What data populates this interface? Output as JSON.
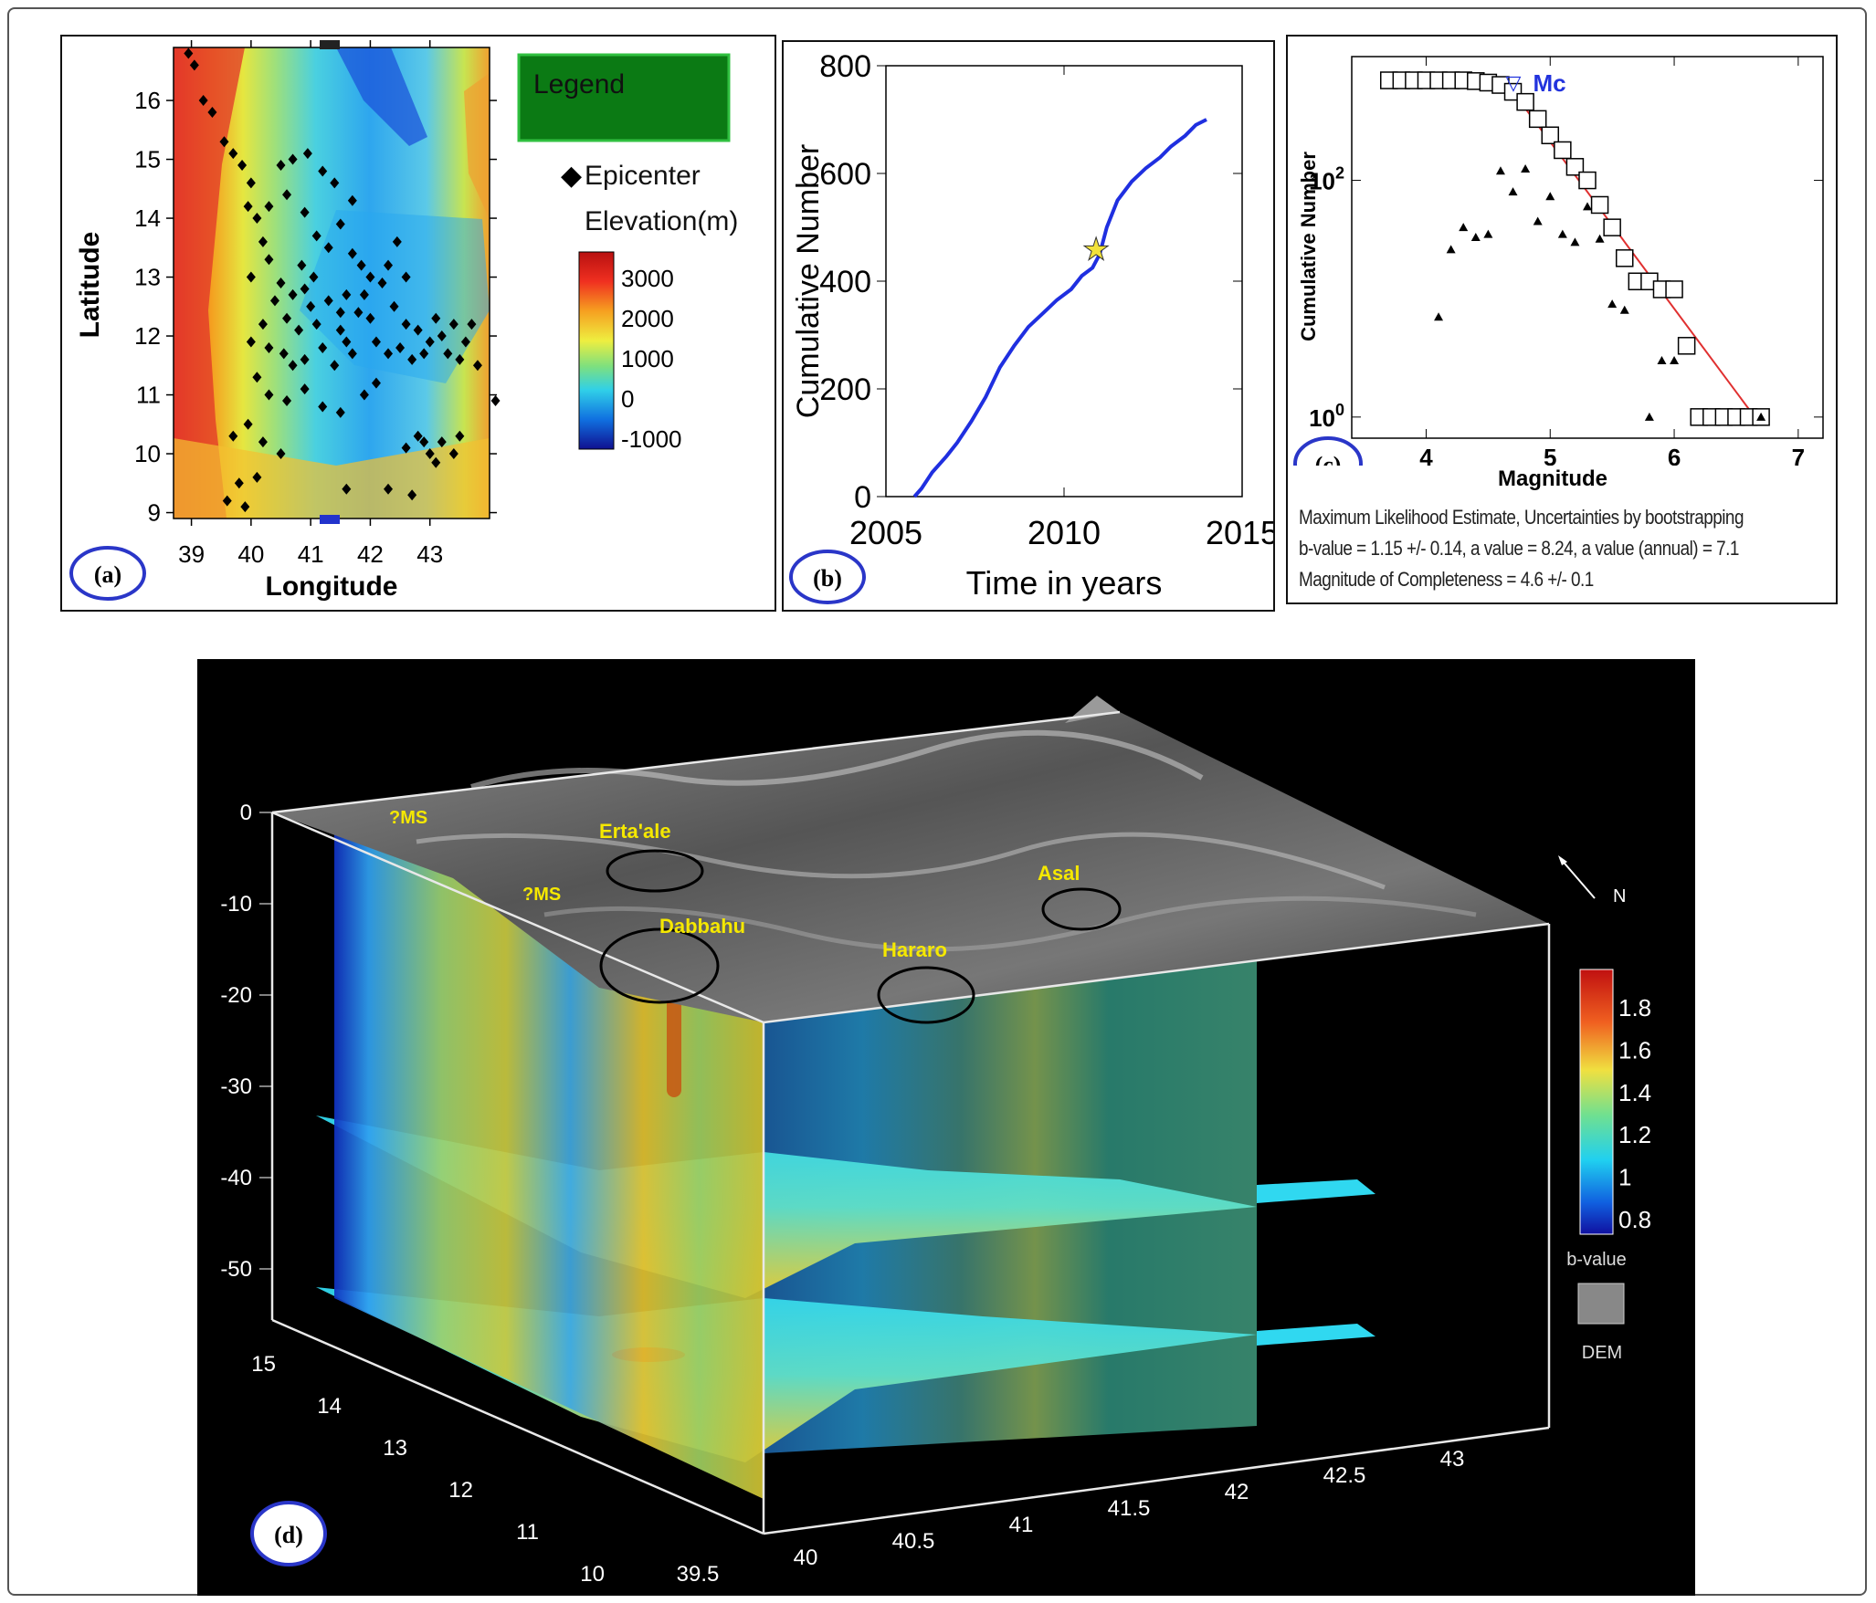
{
  "colors": {
    "epicenter": "#000000",
    "cumulative_curve": "#1f2fe0",
    "marker_star": "#f2e23a",
    "fit_line": "#e03030",
    "mc_label": "#2233dd",
    "legend_box": "#0b7a14",
    "panel_label_circle": "#2a36c8",
    "annotation_text": "#f5e800",
    "panel_d_bg": "#000000"
  },
  "chart_data": [
    {
      "id": "a",
      "type": "scatter",
      "panel_label": "(a)",
      "xlabel": "Longitude",
      "ylabel": "Latitude",
      "xlim": [
        38.7,
        44.0
      ],
      "ylim": [
        8.9,
        16.9
      ],
      "x_ticks": [
        "39",
        "40",
        "41",
        "42",
        "43"
      ],
      "y_ticks": [
        "9",
        "10",
        "11",
        "12",
        "13",
        "14",
        "15",
        "16"
      ],
      "legend": {
        "title": "Legend",
        "series_label": "Epicenter",
        "colorbar_title": "Elevation(m)",
        "colorbar_ticks": [
          "3000",
          "2000",
          "1000",
          "0",
          "-1000"
        ]
      },
      "series": [
        {
          "name": "Epicenter",
          "points": [
            [
              38.95,
              16.8
            ],
            [
              39.05,
              16.6
            ],
            [
              39.2,
              16.0
            ],
            [
              39.35,
              15.8
            ],
            [
              39.55,
              15.3
            ],
            [
              39.7,
              15.1
            ],
            [
              39.85,
              14.9
            ],
            [
              40.0,
              14.6
            ],
            [
              39.95,
              14.2
            ],
            [
              40.1,
              14.0
            ],
            [
              40.2,
              13.6
            ],
            [
              40.3,
              13.3
            ],
            [
              40.5,
              14.9
            ],
            [
              40.7,
              15.0
            ],
            [
              40.95,
              15.1
            ],
            [
              41.2,
              14.8
            ],
            [
              41.4,
              14.6
            ],
            [
              41.7,
              14.3
            ],
            [
              40.6,
              14.4
            ],
            [
              40.9,
              14.1
            ],
            [
              41.1,
              13.7
            ],
            [
              41.3,
              13.5
            ],
            [
              41.5,
              13.9
            ],
            [
              41.7,
              13.4
            ],
            [
              41.85,
              13.2
            ],
            [
              42.0,
              13.0
            ],
            [
              41.9,
              12.7
            ],
            [
              42.2,
              12.9
            ],
            [
              42.3,
              13.2
            ],
            [
              42.45,
              13.6
            ],
            [
              42.6,
              13.0
            ],
            [
              40.5,
              12.9
            ],
            [
              40.7,
              12.7
            ],
            [
              40.9,
              12.8
            ],
            [
              41.0,
              12.5
            ],
            [
              40.6,
              12.3
            ],
            [
              40.8,
              12.1
            ],
            [
              41.1,
              12.2
            ],
            [
              41.3,
              12.6
            ],
            [
              41.5,
              12.4
            ],
            [
              41.6,
              12.7
            ],
            [
              41.8,
              12.4
            ],
            [
              40.4,
              12.6
            ],
            [
              40.2,
              12.2
            ],
            [
              40.0,
              11.9
            ],
            [
              40.3,
              11.8
            ],
            [
              40.55,
              11.7
            ],
            [
              40.7,
              11.5
            ],
            [
              40.9,
              11.6
            ],
            [
              41.2,
              11.8
            ],
            [
              41.4,
              11.5
            ],
            [
              41.6,
              11.9
            ],
            [
              42.1,
              11.9
            ],
            [
              42.3,
              11.7
            ],
            [
              42.5,
              11.8
            ],
            [
              42.7,
              11.6
            ],
            [
              42.9,
              11.7
            ],
            [
              43.0,
              11.9
            ],
            [
              43.2,
              12.0
            ],
            [
              43.4,
              12.2
            ],
            [
              43.6,
              11.9
            ],
            [
              43.7,
              12.2
            ],
            [
              43.5,
              11.6
            ],
            [
              43.3,
              11.7
            ],
            [
              43.8,
              11.5
            ],
            [
              43.1,
              12.3
            ],
            [
              42.8,
              12.1
            ],
            [
              42.6,
              12.2
            ],
            [
              40.1,
              11.3
            ],
            [
              40.3,
              11.0
            ],
            [
              40.6,
              10.9
            ],
            [
              40.9,
              11.1
            ],
            [
              41.2,
              10.8
            ],
            [
              41.5,
              10.7
            ],
            [
              39.95,
              10.5
            ],
            [
              39.7,
              10.3
            ],
            [
              40.2,
              10.2
            ],
            [
              40.5,
              10.0
            ],
            [
              39.8,
              9.5
            ],
            [
              39.6,
              9.2
            ],
            [
              39.9,
              9.1
            ],
            [
              40.1,
              9.6
            ],
            [
              41.6,
              9.4
            ],
            [
              42.3,
              9.4
            ],
            [
              42.7,
              9.3
            ],
            [
              42.6,
              10.1
            ],
            [
              42.8,
              10.3
            ],
            [
              43.0,
              10.0
            ],
            [
              43.2,
              10.2
            ],
            [
              43.4,
              10.0
            ],
            [
              43.1,
              9.85
            ],
            [
              42.9,
              10.2
            ],
            [
              43.5,
              10.3
            ],
            [
              44.1,
              10.9
            ],
            [
              42.1,
              11.2
            ],
            [
              41.9,
              11.0
            ],
            [
              42.4,
              12.5
            ],
            [
              42.0,
              12.3
            ],
            [
              41.7,
              11.7
            ],
            [
              41.5,
              12.1
            ],
            [
              40.85,
              13.2
            ],
            [
              41.05,
              13.0
            ],
            [
              40.3,
              14.2
            ],
            [
              40.0,
              13.0
            ]
          ]
        }
      ]
    },
    {
      "id": "b",
      "type": "line",
      "panel_label": "(b)",
      "xlabel": "Time in years",
      "ylabel": "Cumulative Number",
      "xlim": [
        2005,
        2015
      ],
      "ylim": [
        0,
        800
      ],
      "x_ticks": [
        "2005",
        "2010",
        "2015"
      ],
      "y_ticks": [
        "0",
        "200",
        "400",
        "600",
        "800"
      ],
      "series": [
        {
          "name": "",
          "x": [
            2005.8,
            2006.0,
            2006.3,
            2006.7,
            2007.0,
            2007.4,
            2007.8,
            2008.2,
            2008.6,
            2009.0,
            2009.4,
            2009.8,
            2010.2,
            2010.5,
            2010.8,
            2011.0,
            2011.2,
            2011.5,
            2011.9,
            2012.3,
            2012.7,
            2013.0,
            2013.4,
            2013.7,
            2014.0
          ],
          "y": [
            0,
            15,
            45,
            75,
            100,
            140,
            185,
            240,
            280,
            315,
            340,
            365,
            385,
            410,
            425,
            450,
            500,
            550,
            585,
            610,
            630,
            650,
            670,
            690,
            700
          ]
        }
      ],
      "markers": [
        {
          "type": "star",
          "x": 2010.9,
          "y": 460
        }
      ]
    },
    {
      "id": "c",
      "type": "scatter",
      "panel_label": "(c)",
      "xlabel": "Magnitude",
      "ylabel": "Cumulative Number",
      "y_scale": "log",
      "xlim": [
        3.4,
        7.2
      ],
      "ylim": [
        0.85,
        700
      ],
      "x_ticks": [
        "4",
        "5",
        "6",
        "7"
      ],
      "y_ticks": [
        "10^0",
        "10^2"
      ],
      "mc_label": "Mc",
      "mc_x": 4.7,
      "series": [
        {
          "name": "",
          "marker": "square",
          "x": [
            3.7,
            3.8,
            3.9,
            4.0,
            4.1,
            4.2,
            4.3,
            4.4,
            4.5,
            4.6,
            4.7,
            4.8,
            4.9,
            5.0,
            5.1,
            5.2,
            5.3,
            5.4,
            5.5,
            5.6,
            5.7,
            5.8,
            5.9,
            6.0,
            6.1,
            6.2,
            6.3,
            6.4,
            6.5,
            6.6,
            6.7
          ],
          "y": [
            700,
            700,
            700,
            700,
            700,
            700,
            700,
            690,
            670,
            640,
            560,
            460,
            330,
            240,
            180,
            130,
            100,
            62,
            40,
            22,
            14,
            14,
            12,
            12,
            4,
            1,
            1,
            1,
            1,
            1,
            1
          ]
        },
        {
          "name": "",
          "marker": "triangle",
          "x": [
            4.1,
            4.2,
            4.3,
            4.4,
            4.5,
            4.6,
            4.7,
            4.8,
            4.9,
            5.0,
            5.1,
            5.2,
            5.3,
            5.4,
            5.5,
            5.6,
            5.8,
            5.9,
            6.0,
            6.7
          ],
          "y": [
            7,
            26,
            40,
            33,
            35,
            120,
            80,
            125,
            45,
            73,
            35,
            30,
            60,
            32,
            9,
            8,
            1,
            3,
            3,
            1
          ]
        },
        {
          "name": "",
          "type": "line",
          "x": [
            4.7,
            6.65
          ],
          "y": [
            560,
            1
          ]
        }
      ],
      "annotations": [
        "Maximum Likelihood Estimate, Uncertainties by bootstrapping",
        "b-value = 1.15 +/- 0.14,  a value = 8.24,  a value (annual) = 7.1",
        "Magnitude of Completeness = 4.6 +/- 0.1"
      ]
    },
    {
      "id": "d",
      "type": "heatmap",
      "panel_label": "(d)",
      "z_ticks": [
        "0",
        "-10",
        "-20",
        "-30",
        "-40",
        "-50"
      ],
      "lat_ticks": [
        "15",
        "14",
        "13",
        "12",
        "11",
        "10"
      ],
      "lon_ticks": [
        "39.5",
        "40",
        "40.5",
        "41",
        "41.5",
        "42",
        "42.5",
        "43"
      ],
      "colorbar_title": "b-value",
      "colorbar_ticks": [
        "1.8",
        "1.6",
        "1.4",
        "1.2",
        "1",
        "0.8"
      ],
      "dem_label": "DEM",
      "north_label": "N",
      "volcano_labels": [
        "?MS",
        "?MS",
        "Erta'ale",
        "Dabbahu",
        "Hararo",
        "Asal"
      ]
    }
  ]
}
